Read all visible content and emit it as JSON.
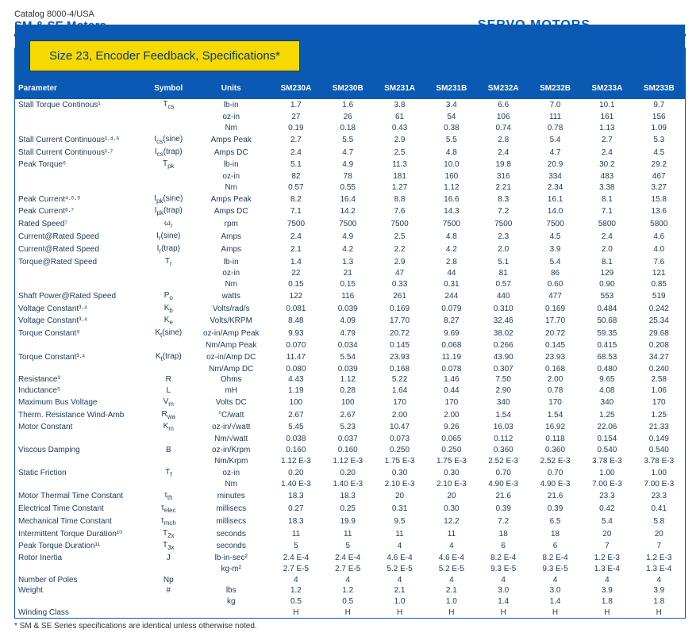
{
  "header": {
    "catalog": "Catalog 8000-4/USA",
    "left_brand": "SM & SE Motors",
    "right_brand": "SERVO MOTORS"
  },
  "tab": "Size 23, Encoder Feedback, Specifications*",
  "columns": {
    "param": "Parameter",
    "symbol": "Symbol",
    "units": "Units",
    "models": [
      "SM230A",
      "SM230B",
      "SM231A",
      "SM231B",
      "SM232A",
      "SM232B",
      "SM233A",
      "SM233B"
    ]
  },
  "rows": [
    {
      "p": "Stall Torque Continous¹",
      "s": "T_cs",
      "u": "lb-in",
      "v": [
        "1.7",
        "1.6",
        "3.8",
        "3.4",
        "6.6",
        "7.0",
        "10.1",
        "9.7"
      ]
    },
    {
      "p": "",
      "s": "",
      "u": "oz-in",
      "v": [
        "27",
        "26",
        "61",
        "54",
        "106",
        "111",
        "161",
        "156"
      ]
    },
    {
      "p": "",
      "s": "",
      "u": "Nm",
      "v": [
        "0.19",
        "0.18",
        "0.43",
        "0.38",
        "0.74",
        "0.78",
        "1.13",
        "1.09"
      ]
    },
    {
      "p": "Stall Current Continuous¹·⁴·⁶",
      "s": "I_cs(sine)",
      "u": "Amps Peak",
      "v": [
        "2.7",
        "5.5",
        "2.9",
        "5.5",
        "2.8",
        "5.4",
        "2.7",
        "5.3"
      ]
    },
    {
      "p": "Stall Current Continuous¹·⁷",
      "s": "I_cs(trap)",
      "u": "Amps DC",
      "v": [
        "2.4",
        "4.7",
        "2.5",
        "4.8",
        "2.4",
        "4.7",
        "2.4",
        "4.5"
      ]
    },
    {
      "p": "Peak Torque⁶",
      "s": "T_pk",
      "u": "lb-in",
      "v": [
        "5.1",
        "4.9",
        "11.3",
        "10.0",
        "19.8",
        "20.9",
        "30.2",
        "29.2"
      ]
    },
    {
      "p": "",
      "s": "",
      "u": "oz-in",
      "v": [
        "82",
        "78",
        "181",
        "160",
        "316",
        "334",
        "483",
        "467"
      ]
    },
    {
      "p": "",
      "s": "",
      "u": "Nm",
      "v": [
        "0.57",
        "0.55",
        "1.27",
        "1.12",
        "2.21",
        "2.34",
        "3.38",
        "3.27"
      ]
    },
    {
      "p": "Peak Current⁴·⁶·⁹",
      "s": "I_pk(sine)",
      "u": "Amps Peak",
      "v": [
        "8.2",
        "16.4",
        "8.8",
        "16.6",
        "8.3",
        "16.1",
        "8.1",
        "15.8"
      ]
    },
    {
      "p": "Peak Current⁶·⁷",
      "s": "I_pk(trap)",
      "u": "Amps DC",
      "v": [
        "7.1",
        "14.2",
        "7.6",
        "14.3",
        "7.2",
        "14.0",
        "7.1",
        "13.6"
      ]
    },
    {
      "p": "Rated Speed⁷",
      "s": "ω_r",
      "u": "rpm",
      "v": [
        "7500",
        "7500",
        "7500",
        "7500",
        "7500",
        "7500",
        "5800",
        "5800"
      ]
    },
    {
      "p": "Current@Rated Speed",
      "s": "I_r(sine)",
      "u": "Amps",
      "v": [
        "2.4",
        "4.9",
        "2.5",
        "4.8",
        "2.3",
        "4.5",
        "2.4",
        "4.6"
      ]
    },
    {
      "p": "Current@Rated Speed",
      "s": "I_r(trap)",
      "u": "Amps",
      "v": [
        "2.1",
        "4.2",
        "2.2",
        "4.2",
        "2.0",
        "3.9",
        "2.0",
        "4.0"
      ]
    },
    {
      "p": "Torque@Rated Speed",
      "s": "T_r",
      "u": "lb-in",
      "v": [
        "1.4",
        "1.3",
        "2.9",
        "2.8",
        "5.1",
        "5.4",
        "8.1",
        "7.6"
      ]
    },
    {
      "p": "",
      "s": "",
      "u": "oz-in",
      "v": [
        "22",
        "21",
        "47",
        "44",
        "81",
        "86",
        "129",
        "121"
      ]
    },
    {
      "p": "",
      "s": "",
      "u": "Nm",
      "v": [
        "0.15",
        "0.15",
        "0.33",
        "0.31",
        "0.57",
        "0.60",
        "0.90",
        "0.85"
      ]
    },
    {
      "p": "Shaft Power@Rated Speed",
      "s": "P_o",
      "u": "watts",
      "v": [
        "122",
        "116",
        "261",
        "244",
        "440",
        "477",
        "553",
        "519"
      ]
    },
    {
      "p": "Voltage Constant³·⁴",
      "s": "K_b",
      "u": "Volts/rad/s",
      "v": [
        "0.081",
        "0.039",
        "0.169",
        "0.079",
        "0.310",
        "0.169",
        "0.484",
        "0.242"
      ]
    },
    {
      "p": "Voltage Constant³·⁴",
      "s": "K_e",
      "u": "Volts/KRPM",
      "v": [
        "8.48",
        "4.09",
        "17.70",
        "8.27",
        "32.46",
        "17.70",
        "50.68",
        "25.34"
      ]
    },
    {
      "p": "Torque Constant⁹",
      "s": "K_t(sine)",
      "u": "oz-in/Amp Peak",
      "v": [
        "9.93",
        "4.79",
        "20.72",
        "9.69",
        "38.02",
        "20.72",
        "59.35",
        "29.68"
      ]
    },
    {
      "p": "",
      "s": "",
      "u": "Nm/Amp Peak",
      "v": [
        "0.070",
        "0.034",
        "0.145",
        "0.068",
        "0.266",
        "0.145",
        "0.415",
        "0.208"
      ]
    },
    {
      "p": "Torque Constant³·⁴",
      "s": "K_t(trap)",
      "u": "oz-in/Amp DC",
      "v": [
        "11.47",
        "5.54",
        "23.93",
        "11.19",
        "43.90",
        "23.93",
        "68.53",
        "34.27"
      ]
    },
    {
      "p": "",
      "s": "",
      "u": "Nm/Amp DC",
      "v": [
        "0.080",
        "0.039",
        "0.168",
        "0.078",
        "0.307",
        "0.168",
        "0.480",
        "0.240"
      ]
    },
    {
      "p": "Resistance³",
      "s": "R",
      "u": "Ohms",
      "v": [
        "4.43",
        "1.12",
        "5.22",
        "1.46",
        "7.50",
        "2.00",
        "9.65",
        "2.58"
      ]
    },
    {
      "p": "Inductance⁵",
      "s": "L",
      "u": "mH",
      "v": [
        "1.19",
        "0.28",
        "1.64",
        "0.44",
        "2.90",
        "0.78",
        "4.08",
        "1.06"
      ]
    },
    {
      "p": "Maximum Bus Voltage",
      "s": "V_m",
      "u": "Volts DC",
      "v": [
        "100",
        "100",
        "170",
        "170",
        "340",
        "170",
        "340",
        "170"
      ]
    },
    {
      "p": "Therm. Resistance Wind-Amb",
      "s": "R_wa",
      "u": "°C/watt",
      "v": [
        "2.67",
        "2.67",
        "2.00",
        "2.00",
        "1.54",
        "1.54",
        "1.25",
        "1.25"
      ]
    },
    {
      "p": "Motor Constant",
      "s": "K_m",
      "u": "oz-in/√watt",
      "v": [
        "5.45",
        "5.23",
        "10.47",
        "9.26",
        "16.03",
        "16.92",
        "22.06",
        "21.33"
      ]
    },
    {
      "p": "",
      "s": "",
      "u": "Nm/√watt",
      "v": [
        "0.038",
        "0.037",
        "0.073",
        "0.065",
        "0.112",
        "0.118",
        "0.154",
        "0.149"
      ]
    },
    {
      "p": "Viscous Damping",
      "s": "B",
      "u": "oz-in/Krpm",
      "v": [
        "0.160",
        "0.160",
        "0.250",
        "0.250",
        "0.360",
        "0.360",
        "0.540",
        "0.540"
      ]
    },
    {
      "p": "",
      "s": "",
      "u": "Nm/Krpm",
      "v": [
        "1.12 E-3",
        "1.12 E-3",
        "1.75 E-3",
        "1.75 E-3",
        "2.52 E-3",
        "2.52 E-3",
        "3.78 E-3",
        "3.78 E-3"
      ]
    },
    {
      "p": "Static Friction",
      "s": "T_f",
      "u": "oz-in",
      "v": [
        "0.20",
        "0.20",
        "0.30",
        "0.30",
        "0.70",
        "0.70",
        "1.00",
        "1.00"
      ]
    },
    {
      "p": "",
      "s": "",
      "u": "Nm",
      "v": [
        "1.40 E-3",
        "1.40 E-3",
        "2.10 E-3",
        "2.10 E-3",
        "4.90 E-3",
        "4.90 E-3",
        "7.00 E-3",
        "7.00 E-3"
      ]
    },
    {
      "p": "Motor Thermal Time Constant",
      "s": "τ_th",
      "u": "minutes",
      "v": [
        "18.3",
        "18.3",
        "20",
        "20",
        "21.6",
        "21.6",
        "23.3",
        "23.3"
      ]
    },
    {
      "p": "Electrical Time Constant",
      "s": "τ_elec",
      "u": "millisecs",
      "v": [
        "0.27",
        "0.25",
        "0.31",
        "0.30",
        "0.39",
        "0.39",
        "0.42",
        "0.41"
      ]
    },
    {
      "p": "Mechanical Time Constant",
      "s": "τ_mch",
      "u": "millisecs",
      "v": [
        "18.3",
        "19.9",
        "9.5",
        "12.2",
        "7.2",
        "6.5",
        "5.4",
        "5.8"
      ]
    },
    {
      "p": "Intermittent Torque Duration¹⁰",
      "s": "T_2x",
      "u": "seconds",
      "v": [
        "11",
        "11",
        "11",
        "11",
        "18",
        "18",
        "20",
        "20"
      ]
    },
    {
      "p": "Peak Torque Duration¹¹",
      "s": "T_3x",
      "u": "seconds",
      "v": [
        "5",
        "5",
        "4",
        "4",
        "6",
        "6",
        "7",
        "7"
      ]
    },
    {
      "p": "Rotor Inertia",
      "s": "J",
      "u": "lb-in-sec²",
      "v": [
        "2.4 E-4",
        "2.4 E-4",
        "4.6 E-4",
        "4.6 E-4",
        "8.2 E-4",
        "8.2 E-4",
        "1.2 E-3",
        "1.2 E-3"
      ]
    },
    {
      "p": "",
      "s": "",
      "u": "kg-m²",
      "v": [
        "2.7 E-5",
        "2.7 E-5",
        "5.2 E-5",
        "5.2 E-5",
        "9.3 E-5",
        "9.3 E-5",
        "1.3 E-4",
        "1.3 E-4"
      ]
    },
    {
      "p": "Number of Poles",
      "s": "Np",
      "u": "",
      "v": [
        "4",
        "4",
        "4",
        "4",
        "4",
        "4",
        "4",
        "4"
      ]
    },
    {
      "p": "Weight",
      "s": "#",
      "u": "lbs",
      "v": [
        "1.2",
        "1.2",
        "2.1",
        "2.1",
        "3.0",
        "3.0",
        "3.9",
        "3.9"
      ]
    },
    {
      "p": "",
      "s": "",
      "u": "kg",
      "v": [
        "0.5",
        "0.5",
        "1.0",
        "1.0",
        "1.4",
        "1.4",
        "1.8",
        "1.8"
      ]
    },
    {
      "p": "Winding Class",
      "s": "",
      "u": "",
      "v": [
        "H",
        "H",
        "H",
        "H",
        "H",
        "H",
        "H",
        "H"
      ]
    }
  ],
  "footnote": "* SM & SE Series specifications are identical unless otherwise noted."
}
